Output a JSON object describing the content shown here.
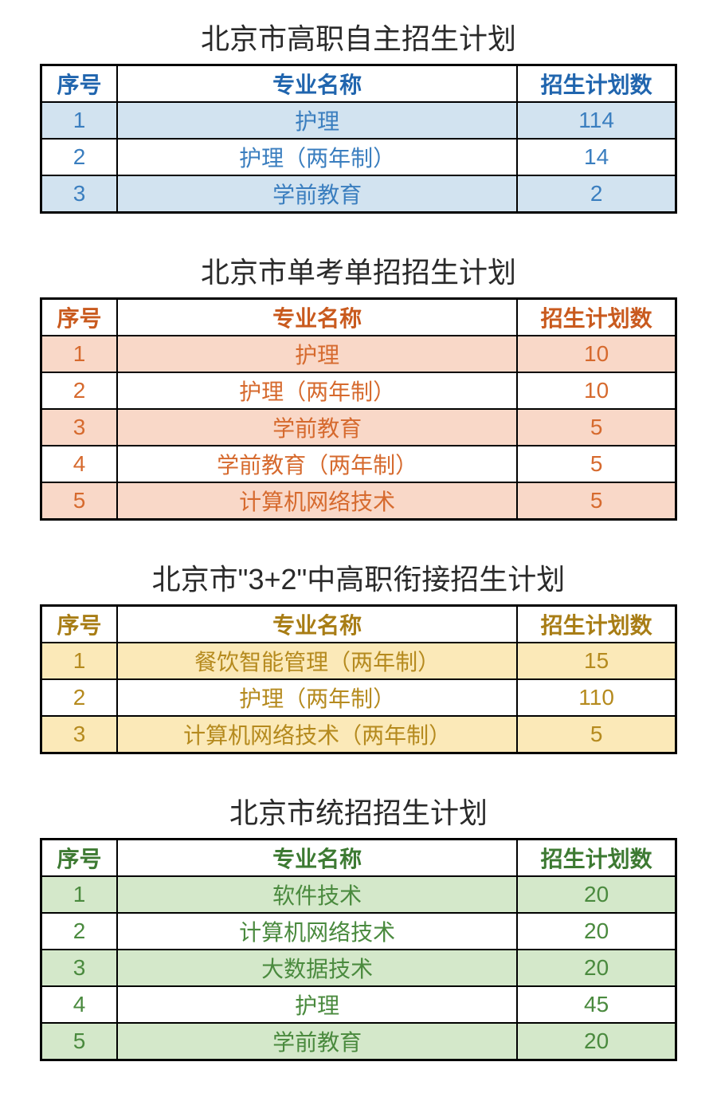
{
  "sections": [
    {
      "title": "北京市高职自主招生计划",
      "theme": "blue-theme",
      "text_color": "#3a7ebf",
      "stripe_color": "#d2e3f0",
      "columns": [
        "序号",
        "专业名称",
        "招生计划数"
      ],
      "rows": [
        [
          "1",
          "护理",
          "114"
        ],
        [
          "2",
          "护理（两年制）",
          "14"
        ],
        [
          "3",
          "学前教育",
          "2"
        ]
      ]
    },
    {
      "title": "北京市单考单招招生计划",
      "theme": "orange-theme",
      "text_color": "#d66a2e",
      "stripe_color": "#f9d8c8",
      "columns": [
        "序号",
        "专业名称",
        "招生计划数"
      ],
      "rows": [
        [
          "1",
          "护理",
          "10"
        ],
        [
          "2",
          "护理（两年制）",
          "10"
        ],
        [
          "3",
          "学前教育",
          "5"
        ],
        [
          "4",
          "学前教育（两年制）",
          "5"
        ],
        [
          "5",
          "计算机网络技术",
          "5"
        ]
      ]
    },
    {
      "title": "北京市\"3+2\"中高职衔接招生计划",
      "theme": "gold-theme",
      "text_color": "#b58a1e",
      "stripe_color": "#fbe9b8",
      "columns": [
        "序号",
        "专业名称",
        "招生计划数"
      ],
      "rows": [
        [
          "1",
          "餐饮智能管理（两年制）",
          "15"
        ],
        [
          "2",
          "护理（两年制）",
          "110"
        ],
        [
          "3",
          "计算机网络技术（两年制）",
          "5"
        ]
      ]
    },
    {
      "title": "北京市统招招生计划",
      "theme": "green-theme",
      "text_color": "#4a8a3e",
      "stripe_color": "#d4e8ca",
      "columns": [
        "序号",
        "专业名称",
        "招生计划数"
      ],
      "rows": [
        [
          "1",
          "软件技术",
          "20"
        ],
        [
          "2",
          "计算机网络技术",
          "20"
        ],
        [
          "3",
          "大数据技术",
          "20"
        ],
        [
          "4",
          "护理",
          "45"
        ],
        [
          "5",
          "学前教育",
          "20"
        ]
      ]
    }
  ],
  "table_styling": {
    "border_color": "#000000",
    "border_width": "2px",
    "outer_border_width": "3px",
    "background_color": "#ffffff",
    "title_fontsize": 36,
    "cell_fontsize": 28,
    "column_widths": [
      "12%",
      "63%",
      "25%"
    ]
  }
}
